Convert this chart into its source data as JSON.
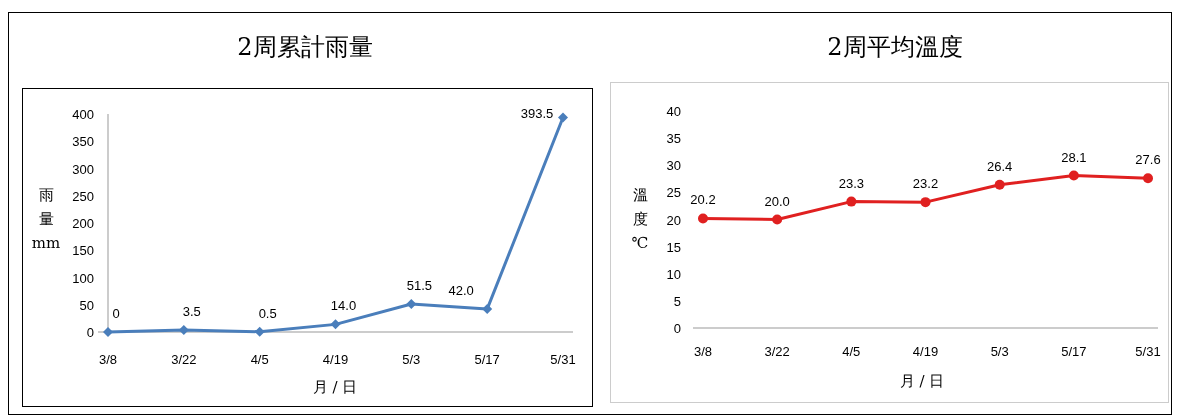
{
  "chart_data": [
    {
      "type": "line",
      "title": "2周累計雨量",
      "xlabel": "月 / 日",
      "ylabel": "雨量 mm",
      "categories": [
        "3/8",
        "3/22",
        "4/5",
        "4/19",
        "5/3",
        "5/17",
        "5/31"
      ],
      "series": [
        {
          "color": "#4a7ebb",
          "values": [
            0,
            3.5,
            0.5,
            14.0,
            51.5,
            42.0,
            393.5
          ],
          "value_labels": [
            "0",
            "3.5",
            "0.5",
            "14.0",
            "51.5",
            "42.0",
            "393.5"
          ]
        }
      ],
      "ylim": [
        0,
        400
      ],
      "yticks": [
        0,
        50,
        100,
        150,
        200,
        250,
        300,
        350,
        400
      ],
      "marker": "diamond",
      "grid": false
    },
    {
      "type": "line",
      "title": "2周平均溫度",
      "xlabel": "月 / 日",
      "ylabel": "溫度 ℃",
      "categories": [
        "3/8",
        "3/22",
        "4/5",
        "4/19",
        "5/3",
        "5/17",
        "5/31"
      ],
      "series": [
        {
          "color": "#e02020",
          "values": [
            20.2,
            20.0,
            23.3,
            23.2,
            26.4,
            28.1,
            27.6
          ],
          "value_labels": [
            "20.2",
            "20.0",
            "23.3",
            "23.2",
            "26.4",
            "28.1",
            "27.6"
          ]
        }
      ],
      "ylim": [
        0,
        40
      ],
      "yticks": [
        0,
        5,
        10,
        15,
        20,
        25,
        30,
        35,
        40
      ],
      "marker": "circle",
      "grid": false
    }
  ]
}
